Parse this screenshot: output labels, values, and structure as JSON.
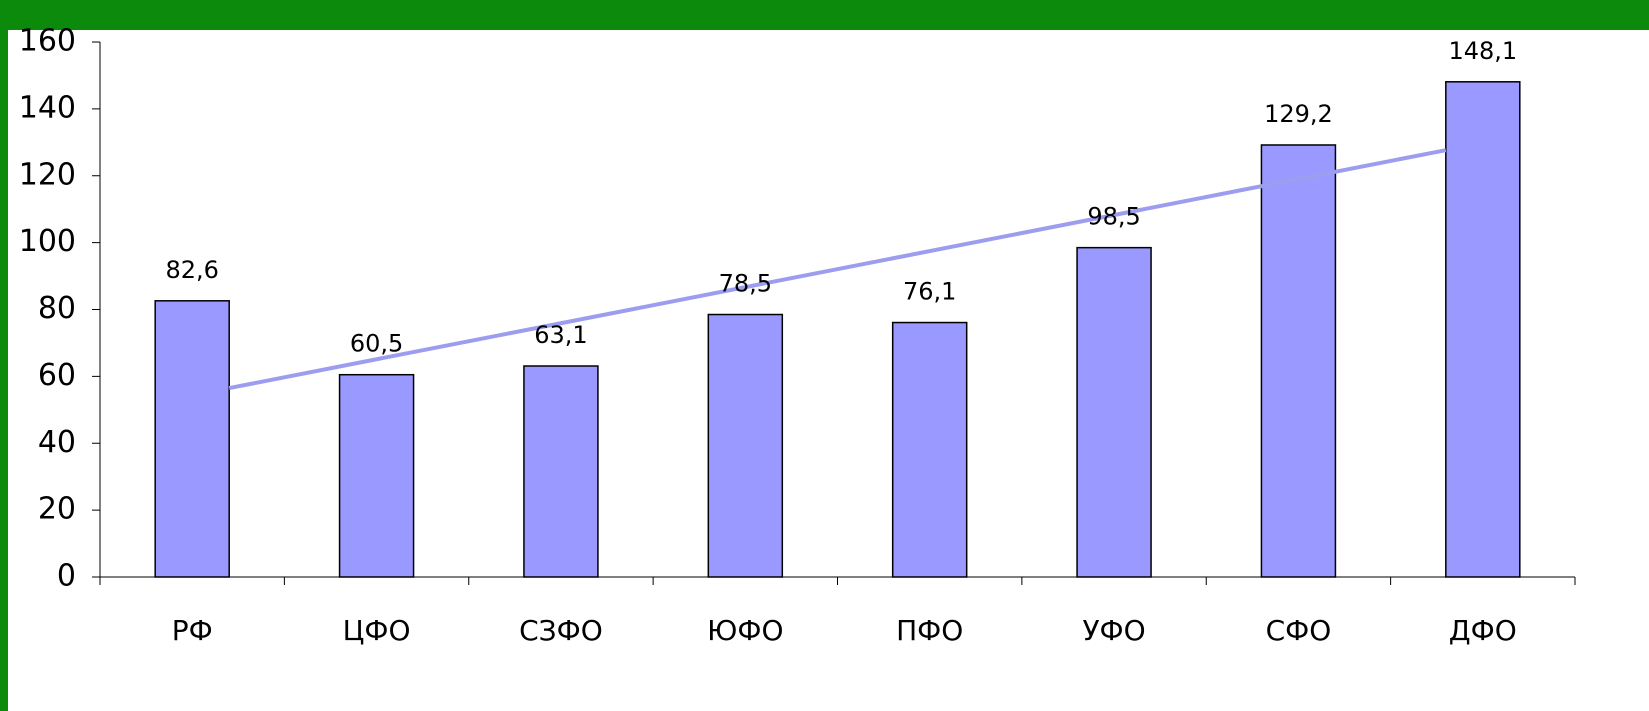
{
  "chart_data": {
    "type": "bar",
    "categories": [
      "РФ",
      "ЦФО",
      "СЗФО",
      "ЮФО",
      "ПФО",
      "УФО",
      "СФО",
      "ДФО"
    ],
    "values": [
      82.6,
      60.5,
      63.1,
      78.5,
      76.1,
      98.5,
      129.2,
      148.1
    ],
    "value_labels": [
      "82,6",
      "60,5",
      "63,1",
      "78,5",
      "76,1",
      "98,5",
      "129,2",
      "148,1"
    ],
    "color": "#9999ff",
    "trendline": {
      "type": "linear",
      "color": "#9d9df0"
    },
    "ylim": [
      0,
      160
    ],
    "yticks": [
      0,
      20,
      40,
      60,
      80,
      100,
      120,
      140,
      160
    ],
    "grid": false
  }
}
